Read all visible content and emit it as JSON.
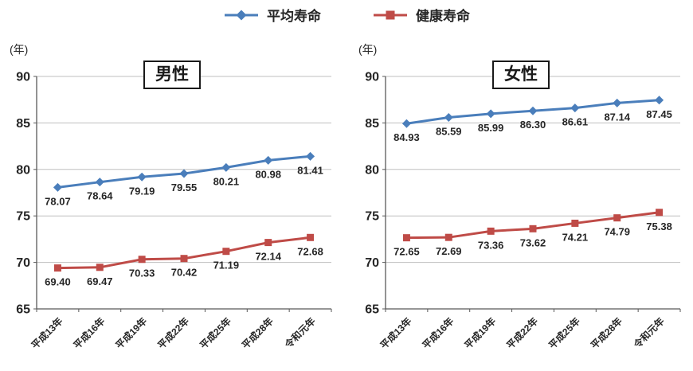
{
  "legend": {
    "items": [
      {
        "label": "平均寿命",
        "color": "#4a7ebb",
        "marker": "diamond"
      },
      {
        "label": "健康寿命",
        "color": "#bf4b47",
        "marker": "square"
      }
    ]
  },
  "chart_data": [
    {
      "type": "line",
      "title": "男性",
      "unit_label": "(年)",
      "categories": [
        "平成13年",
        "平成16年",
        "平成19年",
        "平成22年",
        "平成25年",
        "平成28年",
        "令和元年"
      ],
      "ylim": [
        65,
        90
      ],
      "ytick_step": 5,
      "grid": true,
      "legend_position": "top",
      "series": [
        {
          "name": "平均寿命",
          "color": "#4a7ebb",
          "marker": "diamond",
          "values": [
            78.07,
            78.64,
            79.19,
            79.55,
            80.21,
            80.98,
            81.41
          ]
        },
        {
          "name": "健康寿命",
          "color": "#bf4b47",
          "marker": "square",
          "values": [
            69.4,
            69.47,
            70.33,
            70.42,
            71.19,
            72.14,
            72.68
          ]
        }
      ]
    },
    {
      "type": "line",
      "title": "女性",
      "unit_label": "(年)",
      "categories": [
        "平成13年",
        "平成16年",
        "平成19年",
        "平成22年",
        "平成25年",
        "平成28年",
        "令和元年"
      ],
      "ylim": [
        65,
        90
      ],
      "ytick_step": 5,
      "grid": true,
      "legend_position": "top",
      "series": [
        {
          "name": "平均寿命",
          "color": "#4a7ebb",
          "marker": "diamond",
          "values": [
            84.93,
            85.59,
            85.99,
            86.3,
            86.61,
            87.14,
            87.45
          ]
        },
        {
          "name": "健康寿命",
          "color": "#bf4b47",
          "marker": "square",
          "values": [
            72.65,
            72.69,
            73.36,
            73.62,
            74.21,
            74.79,
            75.38
          ]
        }
      ]
    }
  ]
}
